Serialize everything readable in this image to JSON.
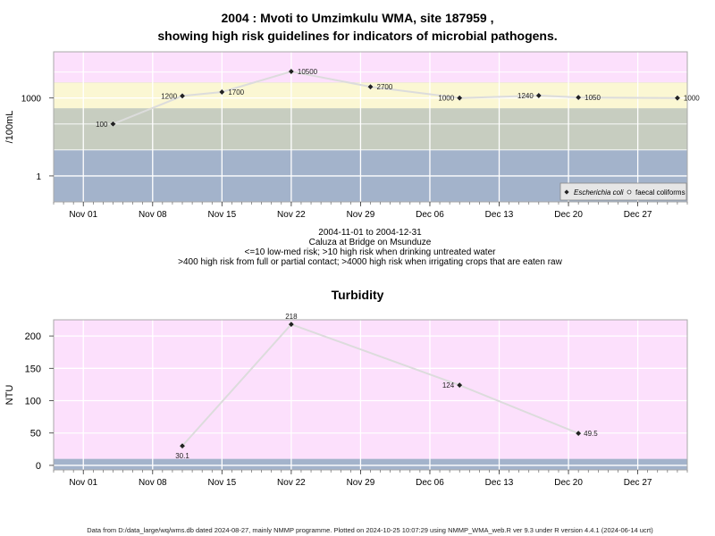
{
  "title_line1": "2004 : Mvoti to Umzimkulu WMA, site 187959 ,",
  "title_line2": "showing high risk guidelines for indicators of microbial pathogens.",
  "caption": {
    "date_range": "2004-11-01 to 2004-12-31",
    "site_name": "Caluza at Bridge on Msunduze",
    "note1": "<=10 low-med risk; >10 high risk when drinking untreated water",
    "note2": ">400 high risk from full or partial contact; >4000 high risk when irrigating crops that are eaten raw"
  },
  "footer": "Data from D:/data_large/wq/wms.db dated 2024-08-27, mainly NMMP programme. Plotted on 2024-10-25 10:07:29 using NMMP_WMA_web.R ver 9.3 under R version 4.4.1 (2024-06-14 ucrt)",
  "colors": {
    "band_pink": "#fce0fc",
    "band_yellow": "#fbf7d3",
    "band_gray": "#c7cdc0",
    "band_blue": "#a3b3cb",
    "line": "#dcdcdc",
    "point": "#222222"
  },
  "chart_data": [
    {
      "type": "line",
      "ylabel": "/100mL",
      "y_scale": "log10",
      "ylim": [
        0.1,
        60000
      ],
      "y_ticks": [
        {
          "value": 1,
          "label": "1"
        },
        {
          "value": 1000,
          "label": "1000"
        }
      ],
      "x_axis": {
        "type": "date",
        "range": [
          "2004-10-29",
          "2005-01-01"
        ],
        "ticks": [
          {
            "date": "2004-11-01",
            "label": "Nov 01"
          },
          {
            "date": "2004-11-08",
            "label": "Nov 08"
          },
          {
            "date": "2004-11-15",
            "label": "Nov 15"
          },
          {
            "date": "2004-11-22",
            "label": "Nov 22"
          },
          {
            "date": "2004-11-29",
            "label": "Nov 29"
          },
          {
            "date": "2004-12-06",
            "label": "Dec 06"
          },
          {
            "date": "2004-12-13",
            "label": "Dec 13"
          },
          {
            "date": "2004-12-20",
            "label": "Dec 20"
          },
          {
            "date": "2004-12-27",
            "label": "Dec 27"
          }
        ]
      },
      "bands": [
        {
          "from": 10,
          "to": 400,
          "color": "band_gray"
        },
        {
          "from": 400,
          "to": 4000,
          "color": "band_yellow"
        },
        {
          "from": 4000,
          "to": 60000,
          "color": "band_pink"
        }
      ],
      "series": [
        {
          "name": "Escherichia coli",
          "marker": "filled-diamond",
          "points": [
            {
              "date": "2004-11-04",
              "value": 100,
              "label": "100"
            },
            {
              "date": "2004-11-11",
              "value": 1200,
              "label": "1200"
            },
            {
              "date": "2004-11-15",
              "value": 1700,
              "label": "1700"
            },
            {
              "date": "2004-11-22",
              "value": 10500,
              "label": "10500"
            },
            {
              "date": "2004-11-30",
              "value": 2700,
              "label": "2700"
            },
            {
              "date": "2004-12-09",
              "value": 1000,
              "label": "1000"
            },
            {
              "date": "2004-12-17",
              "value": 1240,
              "label": "1240"
            },
            {
              "date": "2004-12-21",
              "value": 1050,
              "label": "1050"
            },
            {
              "date": "2004-12-31",
              "value": 1000,
              "label": "1000"
            }
          ]
        },
        {
          "name": "faecal coliforms",
          "marker": "open-circle",
          "points": []
        }
      ],
      "legend_position": "bottom-right",
      "grid": true
    },
    {
      "type": "line",
      "title": "Turbidity",
      "ylabel": "NTU",
      "ylim": [
        -7,
        225
      ],
      "y_ticks": [
        0,
        50,
        100,
        150,
        200
      ],
      "x_axis": {
        "type": "date",
        "range": [
          "2004-10-29",
          "2005-01-01"
        ],
        "ticks": [
          {
            "date": "2004-11-01",
            "label": "Nov 01"
          },
          {
            "date": "2004-11-08",
            "label": "Nov 08"
          },
          {
            "date": "2004-11-15",
            "label": "Nov 15"
          },
          {
            "date": "2004-11-22",
            "label": "Nov 22"
          },
          {
            "date": "2004-11-29",
            "label": "Nov 29"
          },
          {
            "date": "2004-12-06",
            "label": "Dec 06"
          },
          {
            "date": "2004-12-13",
            "label": "Dec 13"
          },
          {
            "date": "2004-12-20",
            "label": "Dec 20"
          },
          {
            "date": "2004-12-27",
            "label": "Dec 27"
          }
        ]
      },
      "bands": [
        {
          "from": 10,
          "to": 225,
          "color": "band_pink"
        }
      ],
      "series": [
        {
          "marker": "filled-diamond",
          "points": [
            {
              "date": "2004-11-11",
              "value": 30.1,
              "label": "30.1"
            },
            {
              "date": "2004-11-22",
              "value": 218,
              "label": "218"
            },
            {
              "date": "2004-12-09",
              "value": 124,
              "label": "124"
            },
            {
              "date": "2004-12-21",
              "value": 49.5,
              "label": "49.5"
            }
          ]
        }
      ],
      "grid": true
    }
  ]
}
